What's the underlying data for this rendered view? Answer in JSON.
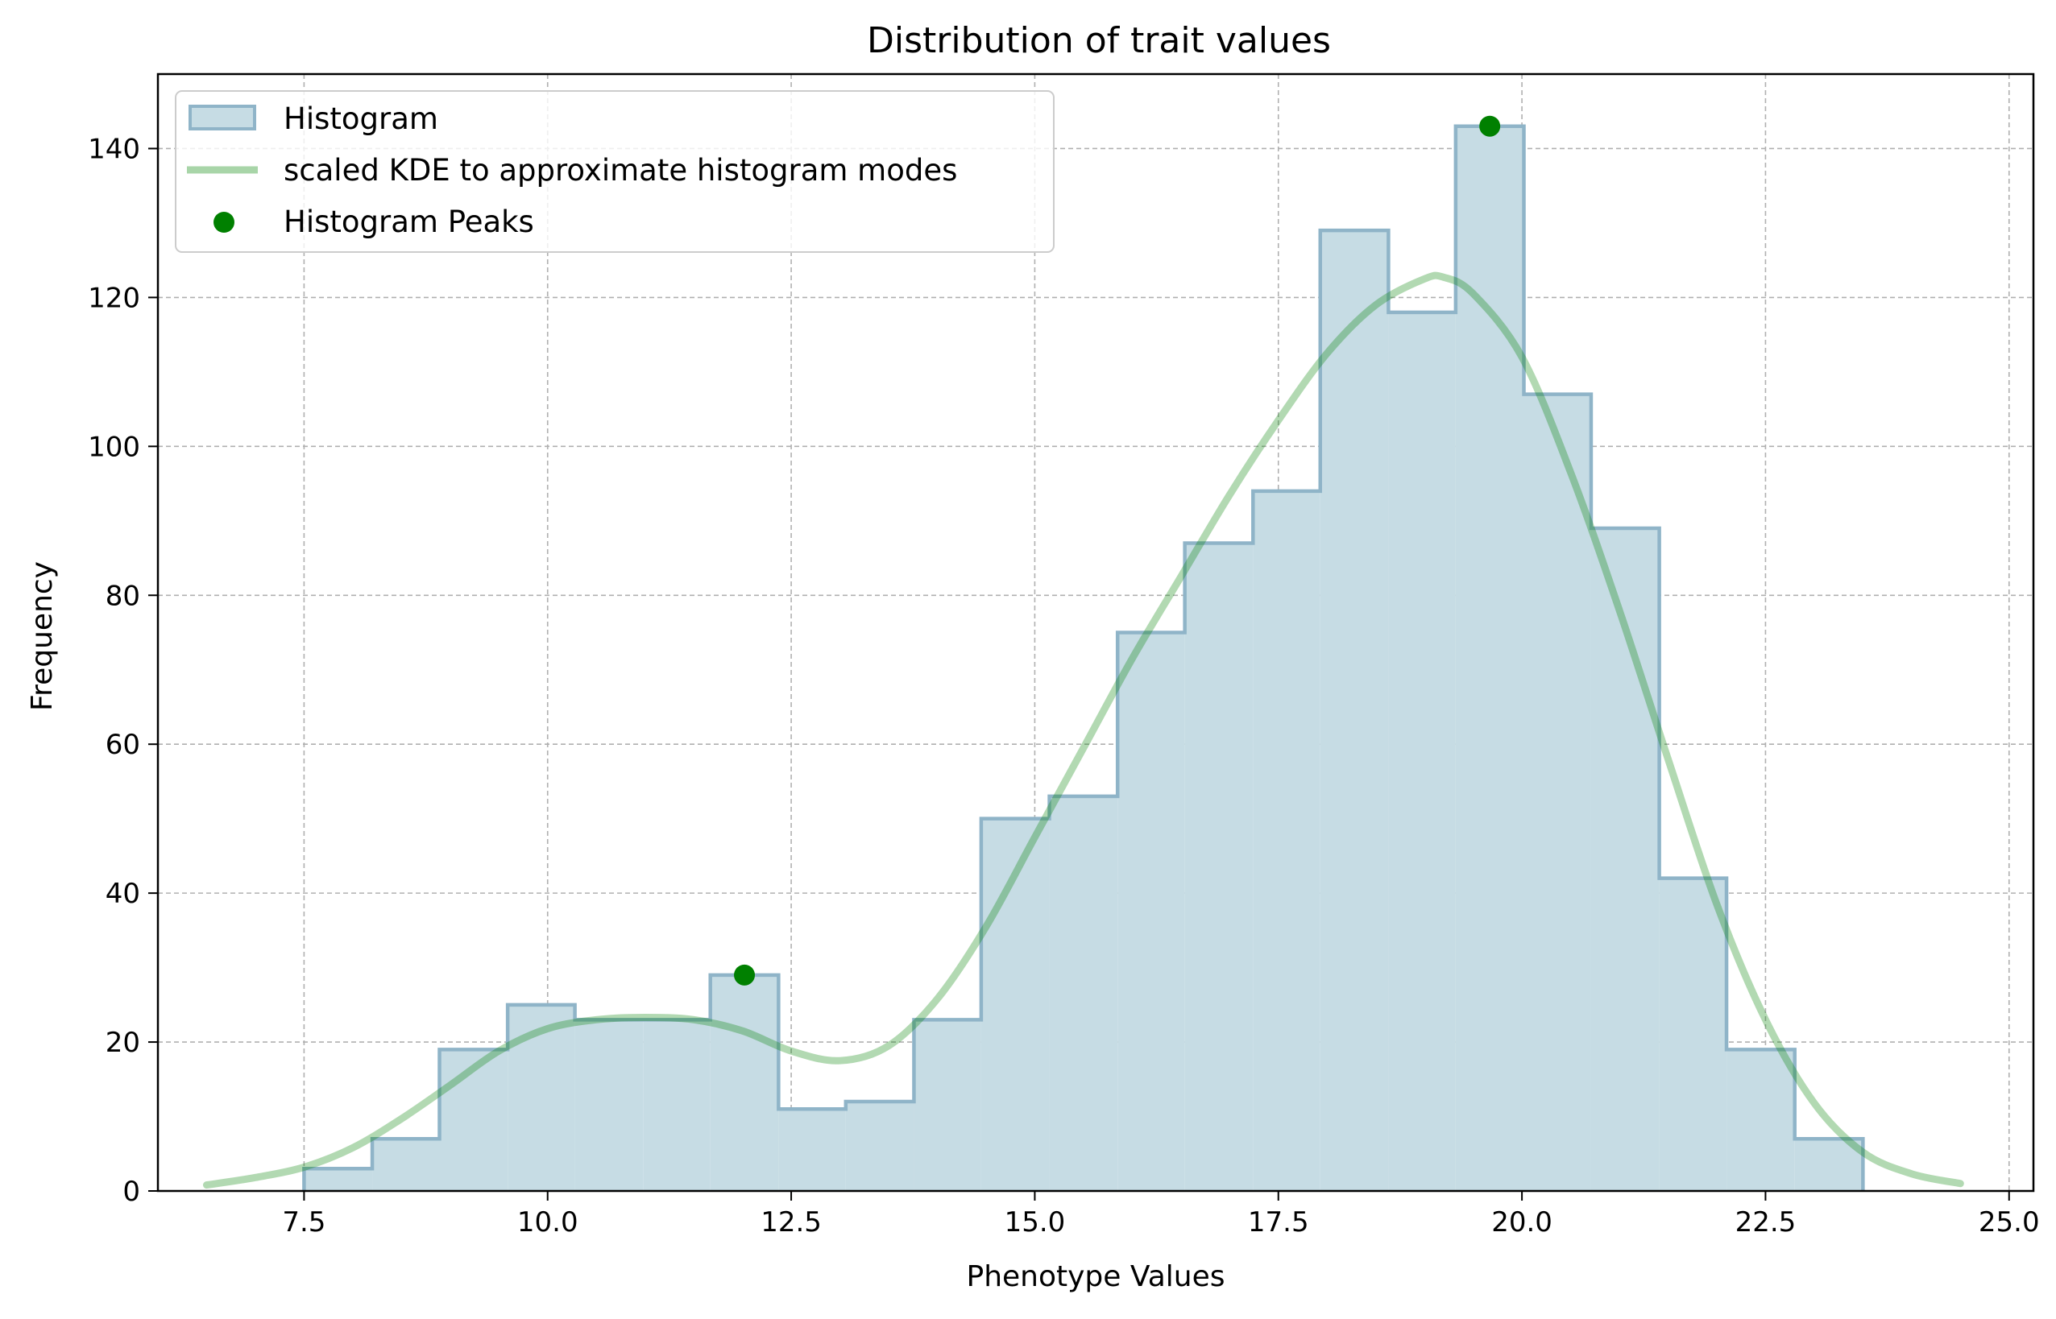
{
  "chart_data": {
    "type": "bar",
    "title": "Distribution of trait values",
    "xlabel": "Phenotype Values",
    "ylabel": "Frequency",
    "xlim": [
      6.0,
      25.25
    ],
    "ylim": [
      0,
      150
    ],
    "xticks": [
      7.5,
      10.0,
      12.5,
      15.0,
      17.5,
      20.0,
      22.5,
      25.0
    ],
    "xtick_labels": [
      "7.5",
      "10.0",
      "12.5",
      "15.0",
      "17.5",
      "20.0",
      "22.5",
      "25.0"
    ],
    "yticks": [
      0,
      20,
      40,
      60,
      80,
      100,
      120,
      140
    ],
    "ytick_labels": [
      "0",
      "20",
      "40",
      "60",
      "80",
      "100",
      "120",
      "140"
    ],
    "grid": true,
    "legend_position": "top-left",
    "histogram": {
      "name": "Histogram",
      "color": "#8fb4c8",
      "fill": "#c6dce4",
      "bin_edges": [
        7.5,
        8.2,
        8.89,
        9.59,
        10.28,
        10.98,
        11.67,
        12.37,
        13.06,
        13.76,
        14.45,
        15.15,
        15.85,
        16.54,
        17.24,
        17.93,
        18.63,
        19.32,
        20.02,
        20.71,
        21.41,
        22.1,
        22.8,
        23.5
      ],
      "counts": [
        3,
        7,
        19,
        25,
        23,
        23,
        29,
        11,
        12,
        23,
        50,
        53,
        75,
        87,
        94,
        129,
        118,
        143,
        107,
        89,
        42,
        19,
        7
      ]
    },
    "kde": {
      "name": "scaled KDE to approximate histogram modes",
      "color": "#a8d5a8",
      "x": [
        6.5,
        7.0,
        7.5,
        8.0,
        8.5,
        9.0,
        9.5,
        10.0,
        10.5,
        11.0,
        11.5,
        12.0,
        12.5,
        13.0,
        13.5,
        14.0,
        14.5,
        15.0,
        15.5,
        16.0,
        16.5,
        17.0,
        17.5,
        18.0,
        18.5,
        19.0,
        19.2,
        19.5,
        20.0,
        20.5,
        21.0,
        21.5,
        22.0,
        22.5,
        23.0,
        23.5,
        24.0,
        24.5
      ],
      "y": [
        0.8,
        1.8,
        3.2,
        5.8,
        9.7,
        14.2,
        18.8,
        21.8,
        23.0,
        23.3,
        23.0,
        21.5,
        18.8,
        17.5,
        19.5,
        25.8,
        35.5,
        47.5,
        59.5,
        71.5,
        82.5,
        93.5,
        103.5,
        112.5,
        119.0,
        122.5,
        122.7,
        120.5,
        112.0,
        96.5,
        78.0,
        58.0,
        38.5,
        23.0,
        11.8,
        5.2,
        2.3,
        1.0
      ]
    },
    "peaks": {
      "name": "Histogram Peaks",
      "color": "#008000",
      "points": [
        {
          "x": 12.02,
          "y": 29
        },
        {
          "x": 19.67,
          "y": 143
        }
      ]
    }
  }
}
